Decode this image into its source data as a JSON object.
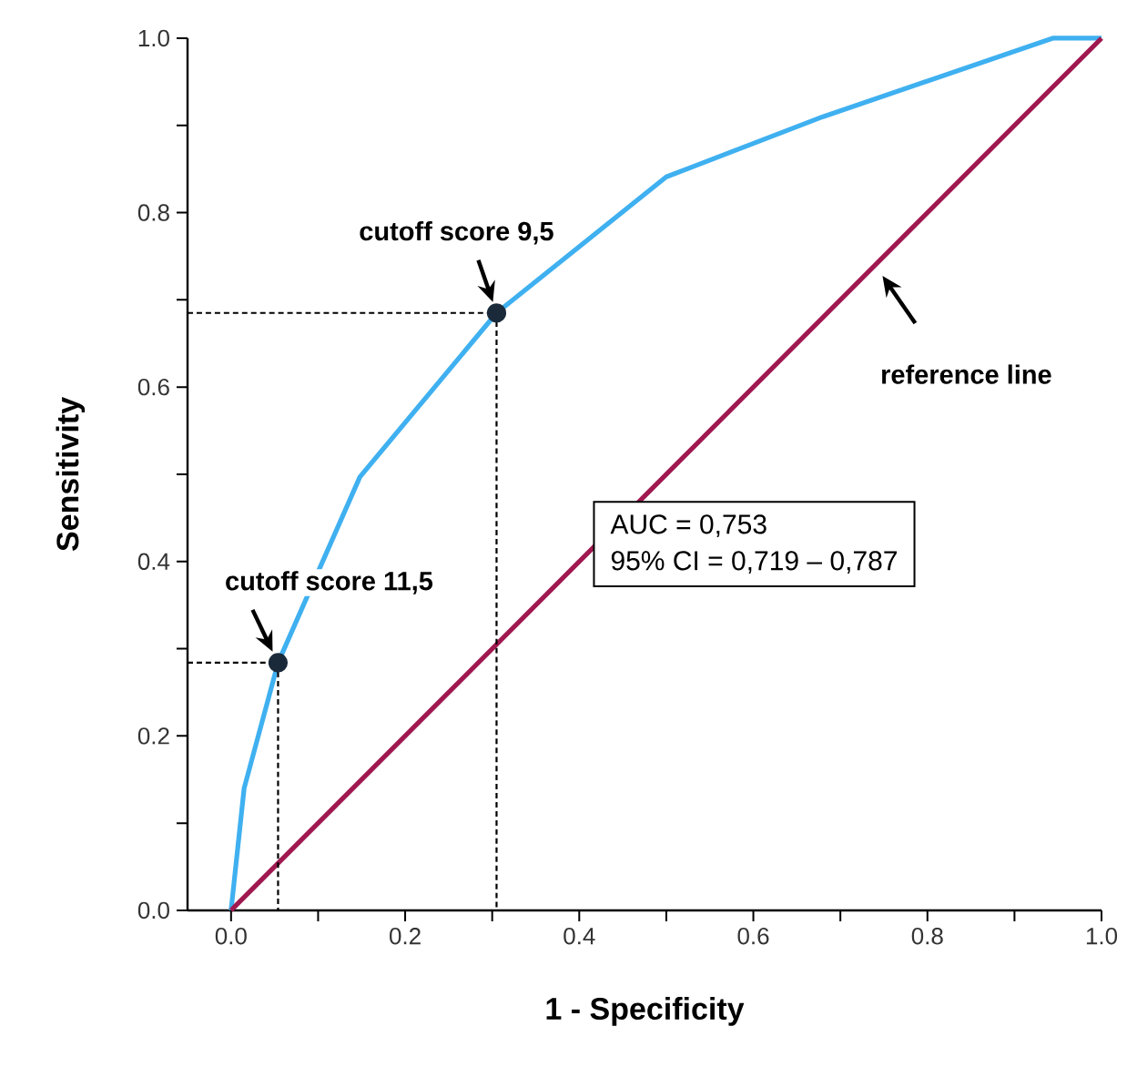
{
  "chart_data": {
    "type": "line",
    "xlabel": "1 - Specificity",
    "ylabel": "Sensitivity",
    "xlim": [
      -0.05,
      1.0
    ],
    "ylim": [
      0,
      1.0
    ],
    "xticks": [
      {
        "value": 0,
        "label": "0.0"
      },
      {
        "value": 0.1,
        "label": null
      },
      {
        "value": 0.2,
        "label": "0.2"
      },
      {
        "value": 0.3,
        "label": null
      },
      {
        "value": 0.4,
        "label": "0.4"
      },
      {
        "value": 0.5,
        "label": null
      },
      {
        "value": 0.6,
        "label": "0.6"
      },
      {
        "value": 0.7,
        "label": null
      },
      {
        "value": 0.8,
        "label": "0.8"
      },
      {
        "value": 0.9,
        "label": null
      },
      {
        "value": 1.0,
        "label": "1.0"
      }
    ],
    "yticks": [
      {
        "value": 0,
        "label": "0.0"
      },
      {
        "value": 0.1,
        "label": null
      },
      {
        "value": 0.2,
        "label": "0.2"
      },
      {
        "value": 0.3,
        "label": null
      },
      {
        "value": 0.4,
        "label": "0.4"
      },
      {
        "value": 0.5,
        "label": null
      },
      {
        "value": 0.6,
        "label": "0.6"
      },
      {
        "value": 0.7,
        "label": null
      },
      {
        "value": 0.8,
        "label": "0.8"
      },
      {
        "value": 0.9,
        "label": null
      },
      {
        "value": 1.0,
        "label": "1.0"
      }
    ],
    "series": [
      {
        "color": "#3fb0f0",
        "x": [
          0,
          0.015,
          0.054,
          0.148,
          0.305,
          0.5,
          0.68,
          0.944,
          1.0
        ],
        "values": [
          0,
          0.14,
          0.284,
          0.497,
          0.685,
          0.841,
          0.91,
          1.0,
          1.0
        ]
      },
      {
        "name": "reference line",
        "color": "#a01850",
        "x": [
          0,
          1.0
        ],
        "values": [
          0,
          1.0
        ]
      },
      {
        "color": "#000000",
        "line_style": "dashed",
        "x": [
          -0.05,
          0.054,
          0.054
        ],
        "values": [
          0.284,
          0.284,
          0
        ]
      },
      {
        "color": "#000000",
        "line_style": "dashed",
        "x": [
          -0.05,
          0.305,
          0.305
        ],
        "values": [
          0.685,
          0.685,
          0
        ]
      },
      {
        "type": "scatter",
        "color": "#1a2a3a",
        "x": [
          0.054,
          0.305
        ],
        "values": [
          0.284,
          0.685
        ]
      }
    ],
    "annotations": [
      {
        "text": "cutoff score 9,5",
        "x": 0.305,
        "y": 0.685
      },
      {
        "text": "cutoff score 11,5",
        "x": 0.054,
        "y": 0.284
      },
      "AUC = 0,753",
      "95% CI = 0,719 – 0,787"
    ],
    "grid": false,
    "legend": false
  }
}
